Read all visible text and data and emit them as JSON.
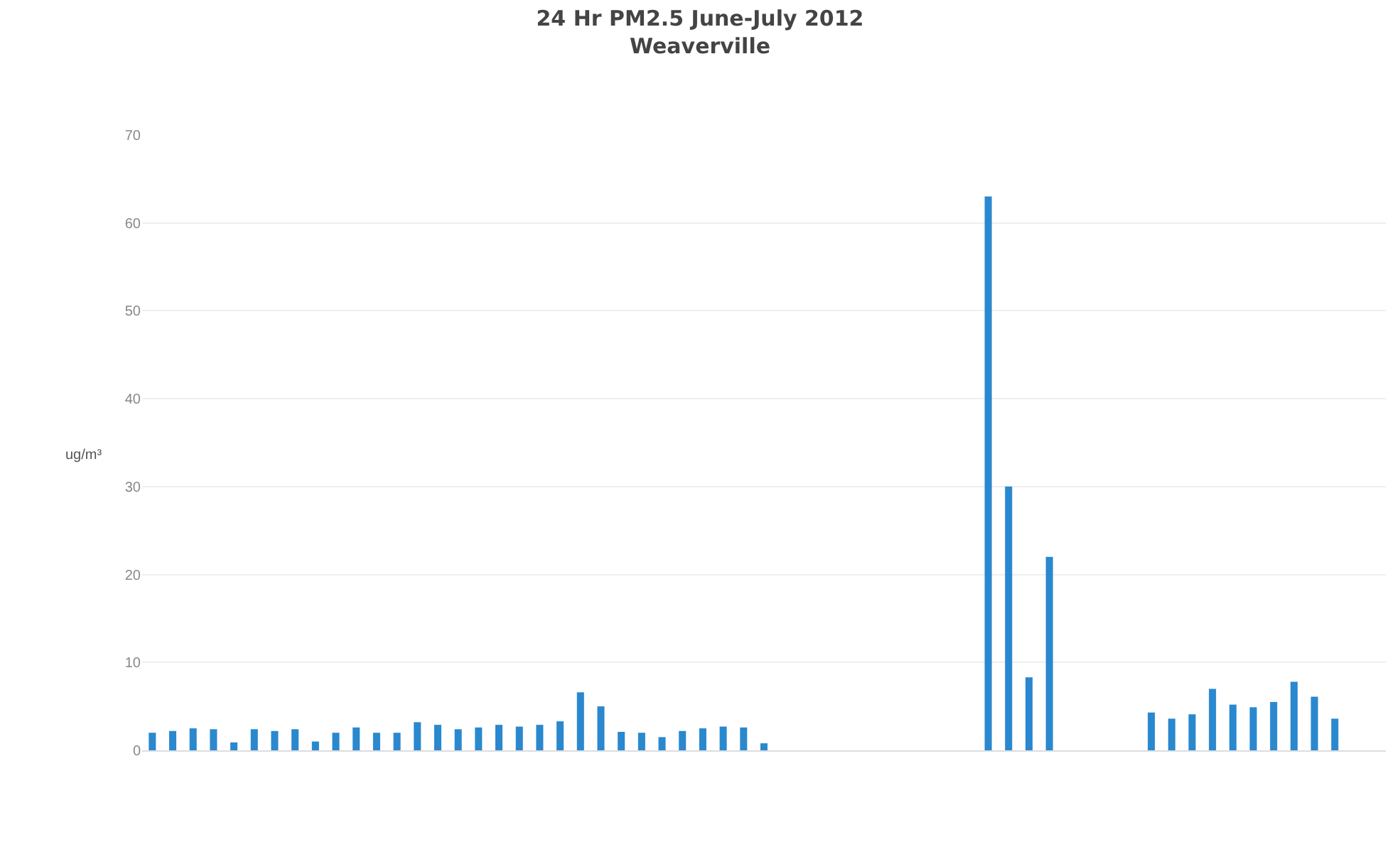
{
  "chart_data": {
    "type": "bar",
    "title": "24 Hr PM2.5 June-July 2012",
    "subtitle": "Weaverville",
    "ylabel": "ug/m³",
    "categories": [
      null,
      null,
      null,
      null,
      null,
      null,
      null,
      null,
      null,
      null,
      null,
      null,
      null,
      null,
      null,
      null,
      null,
      null,
      null,
      null,
      null,
      null,
      null,
      null,
      null,
      null,
      null,
      null,
      null,
      null,
      null,
      null,
      null,
      null,
      null,
      null,
      null,
      null,
      null,
      null,
      null,
      null,
      null,
      null,
      null,
      null,
      null,
      null,
      null,
      null,
      null,
      null,
      null,
      null,
      null,
      null,
      null,
      null,
      null,
      null,
      null
    ],
    "values": [
      2.0,
      2.2,
      2.5,
      2.4,
      0.9,
      2.4,
      2.2,
      2.4,
      1.0,
      2.0,
      2.6,
      2.0,
      2.0,
      3.2,
      2.9,
      2.4,
      2.6,
      2.9,
      2.7,
      2.9,
      3.3,
      6.6,
      5.0,
      2.1,
      2.0,
      1.5,
      2.2,
      2.5,
      2.7,
      2.6,
      0.8,
      null,
      null,
      null,
      null,
      null,
      null,
      null,
      null,
      null,
      null,
      63,
      30,
      8.3,
      22,
      null,
      null,
      null,
      null,
      4.3,
      3.6,
      4.1,
      7.0,
      5.2,
      4.9,
      5.5,
      7.8,
      6.1,
      3.6,
      null,
      null
    ],
    "color": "#2a88cf",
    "ylim": [
      0,
      70
    ],
    "yticks": [
      0,
      10,
      20,
      30,
      40,
      50,
      60,
      70
    ],
    "grid": "y",
    "legend": false
  }
}
